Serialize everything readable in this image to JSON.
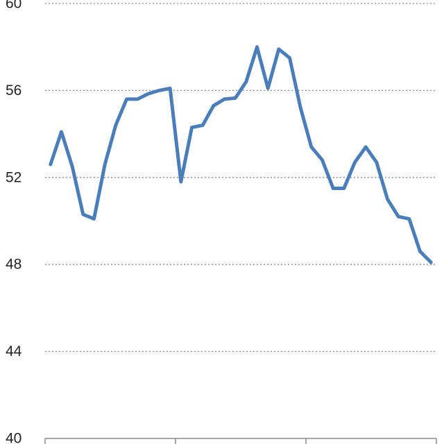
{
  "chart_data": {
    "type": "line",
    "categories": [
      null,
      null,
      null,
      null,
      null,
      null,
      null,
      null,
      null,
      null,
      null,
      null,
      null,
      null,
      null,
      null,
      null,
      null,
      null,
      null,
      null,
      null,
      null,
      null,
      null,
      null,
      null,
      null,
      null,
      null,
      null,
      null,
      null,
      null,
      null,
      null
    ],
    "series": [
      {
        "color": "#4a7ebb",
        "values": [
          52.6,
          54.1,
          52.5,
          50.3,
          50.1,
          52.6,
          54.4,
          55.6,
          55.6,
          55.85,
          56.0,
          56.1,
          51.8,
          54.3,
          54.4,
          55.3,
          55.6,
          55.65,
          56.4,
          58.0,
          56.1,
          57.9,
          57.5,
          55.2,
          53.4,
          52.8,
          51.5,
          51.5,
          52.7,
          53.4,
          52.7,
          51.0,
          50.2,
          50.1,
          48.6,
          48.1
        ]
      }
    ],
    "ylim": [
      40,
      60
    ],
    "yticks": [
      40,
      44,
      48,
      52,
      56,
      60
    ],
    "grid": true
  }
}
